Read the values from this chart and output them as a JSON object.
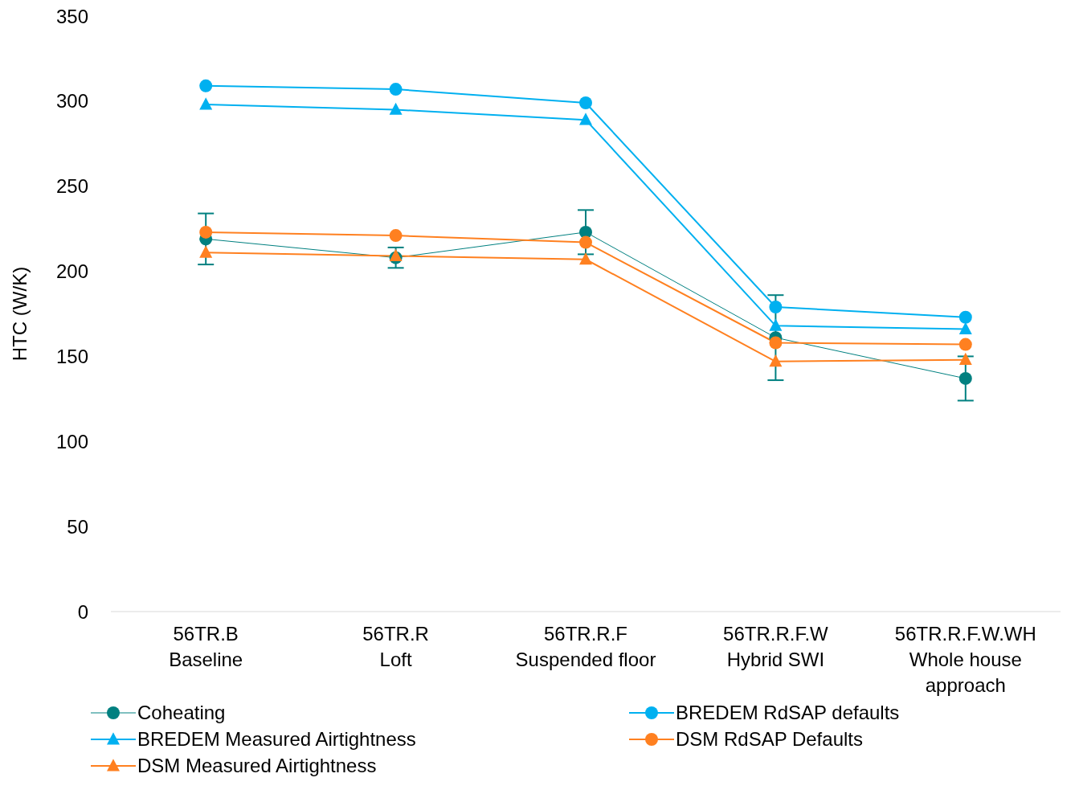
{
  "chart_data": {
    "type": "line",
    "ylabel": "HTC (W/K)",
    "categories": [
      "56TR.B\nBaseline",
      "56TR.R\nLoft",
      "56TR.R.F\nSuspended floor",
      "56TR.R.F.W\nHybrid SWI",
      "56TR.R.F.W.WH\nWhole house\napproach"
    ],
    "series": [
      {
        "name": "Coheating",
        "color": "#008080",
        "marker": "circle",
        "values": [
          219,
          208,
          223,
          161,
          137
        ],
        "errors": [
          15,
          6,
          13,
          25,
          13
        ]
      },
      {
        "name": "BREDEM RdSAP defaults",
        "color": "#00b0f0",
        "marker": "circle",
        "values": [
          309,
          307,
          299,
          179,
          173
        ]
      },
      {
        "name": "BREDEM Measured Airtightness",
        "color": "#00b0f0",
        "marker": "triangle",
        "values": [
          298,
          295,
          289,
          168,
          166
        ]
      },
      {
        "name": "DSM RdSAP Defaults",
        "color": "#ff8020",
        "marker": "circle",
        "values": [
          223,
          221,
          217,
          158,
          157
        ]
      },
      {
        "name": "DSM Measured Airtightness",
        "color": "#ff8020",
        "marker": "triangle",
        "values": [
          211,
          209,
          207,
          147,
          148
        ]
      }
    ],
    "ylim": [
      0,
      350
    ],
    "yticks": [
      0,
      50,
      100,
      150,
      200,
      250,
      300,
      350
    ],
    "grid": false,
    "legend": "bottom"
  }
}
